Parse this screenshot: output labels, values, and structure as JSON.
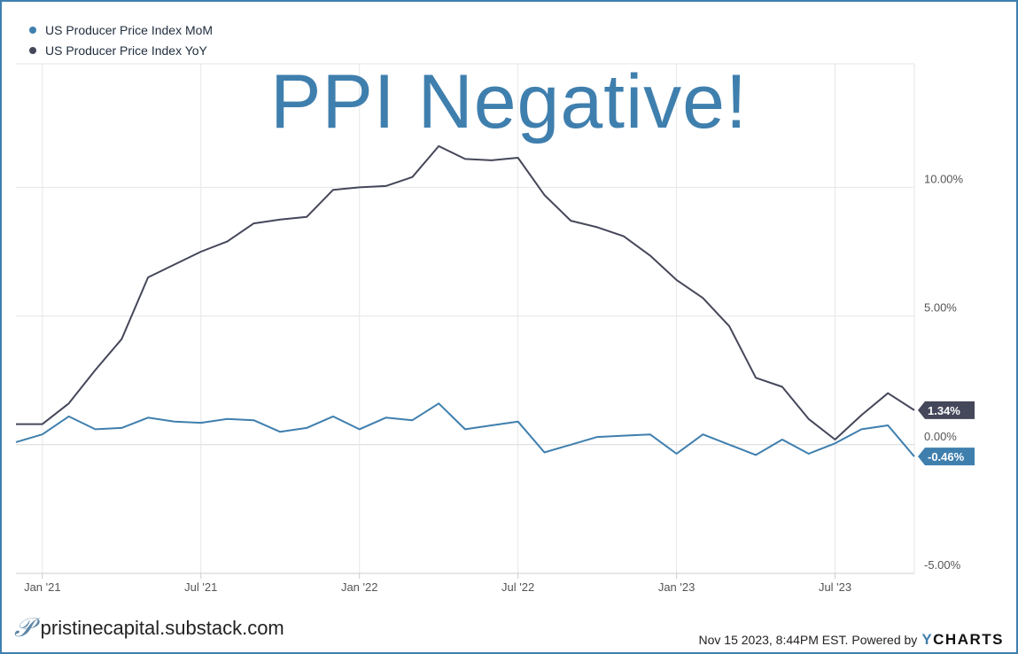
{
  "watermark": "PPI Negative!",
  "footer": {
    "brand": "pristinecapital.substack.com",
    "timestamp": "Nov 15 2023, 8:44PM EST.",
    "powered_by": "Powered by",
    "ycharts_y": "Y",
    "ycharts_rest": "CHARTS"
  },
  "colors": {
    "mom": "#3f7fae",
    "yoy": "#45475a",
    "grid": "#e6e6e6",
    "axis": "#cccccc",
    "frame": "#3f7fae"
  },
  "chart_data": {
    "type": "line",
    "title": "",
    "xlabel": "",
    "ylabel": "",
    "x": [
      "Dec '20",
      "Jan '21",
      "Feb '21",
      "Mar '21",
      "Apr '21",
      "May '21",
      "Jun '21",
      "Jul '21",
      "Aug '21",
      "Sep '21",
      "Oct '21",
      "Nov '21",
      "Dec '21",
      "Jan '22",
      "Feb '22",
      "Mar '22",
      "Apr '22",
      "May '22",
      "Jun '22",
      "Jul '22",
      "Aug '22",
      "Sep '22",
      "Oct '22",
      "Nov '22",
      "Dec '22",
      "Jan '23",
      "Feb '23",
      "Mar '23",
      "Apr '23",
      "May '23",
      "Jun '23",
      "Jul '23",
      "Aug '23",
      "Sep '23",
      "Oct '23"
    ],
    "x_ticks": [
      "Jan '21",
      "Jul '21",
      "Jan '22",
      "Jul '22",
      "Jan '23",
      "Jul '23"
    ],
    "x_tick_index": [
      1,
      7,
      13,
      19,
      25,
      31
    ],
    "y_ticks": [
      "10.00%",
      "5.00%",
      "0.00%",
      "-5.00%"
    ],
    "y_tick_values": [
      10,
      5,
      0,
      -5
    ],
    "ylim": [
      -5,
      14.8
    ],
    "legend": [
      "US Producer Price Index MoM",
      "US Producer Price Index YoY"
    ],
    "series": [
      {
        "name": "US Producer Price Index MoM",
        "values": [
          0.1,
          0.4,
          1.1,
          0.6,
          0.65,
          1.05,
          0.9,
          0.85,
          1.0,
          0.95,
          0.5,
          0.65,
          1.1,
          0.6,
          1.05,
          0.95,
          1.6,
          0.6,
          0.75,
          0.9,
          -0.3,
          0.0,
          0.3,
          0.35,
          0.4,
          -0.35,
          0.4,
          0.0,
          -0.4,
          0.2,
          -0.35,
          0.05,
          0.6,
          0.75,
          -0.46
        ],
        "end_label": "-0.46%"
      },
      {
        "name": "US Producer Price Index YoY",
        "values": [
          0.8,
          0.8,
          1.6,
          2.9,
          4.1,
          6.5,
          7.0,
          7.5,
          7.9,
          8.6,
          8.75,
          8.85,
          9.9,
          10.0,
          10.05,
          10.4,
          11.6,
          11.1,
          11.05,
          11.15,
          9.7,
          8.7,
          8.45,
          8.1,
          7.35,
          6.4,
          5.7,
          4.6,
          2.6,
          2.25,
          1.0,
          0.2,
          1.15,
          2.0,
          1.34
        ],
        "end_label": "1.34%"
      }
    ]
  }
}
